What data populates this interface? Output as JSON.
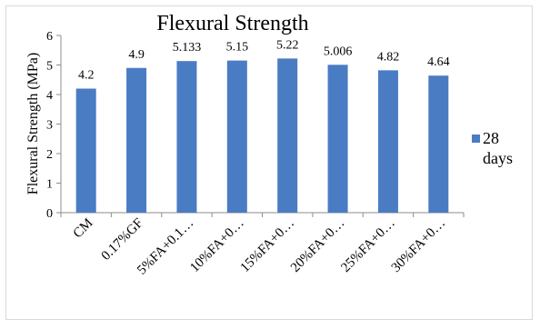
{
  "chart_data": {
    "type": "bar",
    "title": "Flexural Strength",
    "ylabel": "Flexural Strength (MPa)",
    "xlabel": "",
    "categories": [
      "CM",
      "0.17%GF",
      "5%FA+0.1…",
      "10%FA+0…",
      "15%FA+0…",
      "20%FA+0…",
      "25%FA+0…",
      "30%FA+0…"
    ],
    "series": [
      {
        "name": "28 days",
        "values": [
          4.2,
          4.9,
          5.133,
          5.15,
          5.22,
          5.006,
          4.82,
          4.64
        ],
        "data_labels": [
          "4.2",
          "4.9",
          "5.133",
          "5.15",
          "5.22",
          "5.006",
          "4.82",
          "4.64"
        ],
        "color": "#4a7cc4"
      }
    ],
    "ylim": [
      0,
      6
    ],
    "yticks": [
      0,
      1,
      2,
      3,
      4,
      5,
      6
    ],
    "legend": {
      "position": "right",
      "lines": [
        "28",
        "days"
      ]
    },
    "grid": false
  }
}
